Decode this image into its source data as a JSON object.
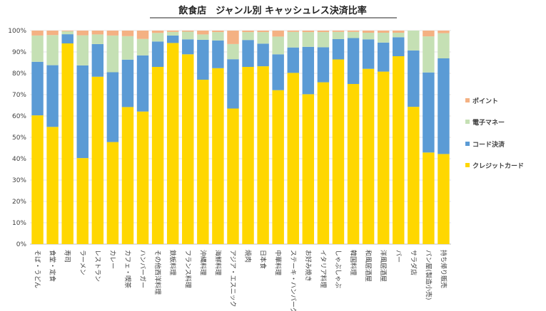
{
  "chart_data": {
    "type": "bar",
    "stacked": true,
    "percent_stacked": true,
    "title": "飲食店　ジャンル別 キャッシュレス決済比率",
    "xlabel": "",
    "ylabel": "",
    "ylim": [
      0,
      100
    ],
    "y_ticks": [
      "0%",
      "10%",
      "20%",
      "30%",
      "40%",
      "50%",
      "60%",
      "70%",
      "80%",
      "90%",
      "100%"
    ],
    "legend_position": "right",
    "categories": [
      "そば・うどん",
      "食堂・定食",
      "寿司",
      "ラーメン",
      "レストラン",
      "カレー",
      "カフェ・喫茶",
      "ハンバーガー",
      "その他西洋料理",
      "鉄板料理",
      "フランス料理",
      "沖縄料理",
      "海鮮料理",
      "アジア・エスニック",
      "焼肉",
      "日本食",
      "中華料理",
      "ステーキ・ハンバーグ",
      "お好み焼き",
      "イタリア料理",
      "しゃぶしゃぶ",
      "韓国料理",
      "和風居酒屋",
      "洋風居酒屋",
      "バー",
      "サラダ店",
      "パン屋(製造小売)",
      "持ち帰り販売"
    ],
    "series": [
      {
        "name": "クレジットカード",
        "color": "#FFD700",
        "values": [
          60.3,
          54.9,
          94.0,
          40.3,
          78.4,
          47.8,
          64.2,
          62.1,
          83.0,
          94.2,
          88.9,
          77.0,
          82.4,
          63.5,
          83.0,
          83.3,
          72.1,
          80.2,
          70.2,
          75.8,
          86.5,
          75.0,
          82.1,
          80.8,
          88.0,
          64.3,
          42.9,
          42.2
        ]
      },
      {
        "name": "コード決済",
        "color": "#5B9BD5",
        "values": [
          25.1,
          28.9,
          4.3,
          43.4,
          15.3,
          32.7,
          22.2,
          26.3,
          11.9,
          3.5,
          7.0,
          18.7,
          13.0,
          23.1,
          12.6,
          10.6,
          16.8,
          11.9,
          22.2,
          16.4,
          9.5,
          21.5,
          13.8,
          13.6,
          8.9,
          26.4,
          37.5,
          44.8
        ]
      },
      {
        "name": "電子マネー",
        "color": "#C5E0B4",
        "values": [
          12.3,
          14.1,
          1.4,
          14.1,
          4.5,
          17.2,
          11.0,
          7.7,
          4.0,
          1.7,
          3.6,
          2.5,
          3.9,
          7.1,
          3.7,
          5.4,
          8.3,
          7.3,
          6.9,
          7.1,
          3.4,
          2.9,
          3.1,
          4.6,
          2.1,
          9.3,
          16.9,
          11.8
        ]
      },
      {
        "name": "ポイント",
        "color": "#F4B183",
        "values": [
          2.3,
          2.1,
          0.3,
          2.2,
          1.8,
          2.3,
          2.6,
          3.9,
          1.1,
          0.6,
          0.5,
          1.8,
          0.7,
          6.3,
          0.7,
          0.7,
          2.8,
          0.6,
          0.7,
          0.7,
          0.6,
          0.6,
          1.0,
          1.0,
          1.0,
          0.0,
          2.7,
          1.2
        ]
      }
    ],
    "legend_order": [
      "ポイント",
      "電子マネー",
      "コード決済",
      "クレジットカード"
    ]
  }
}
